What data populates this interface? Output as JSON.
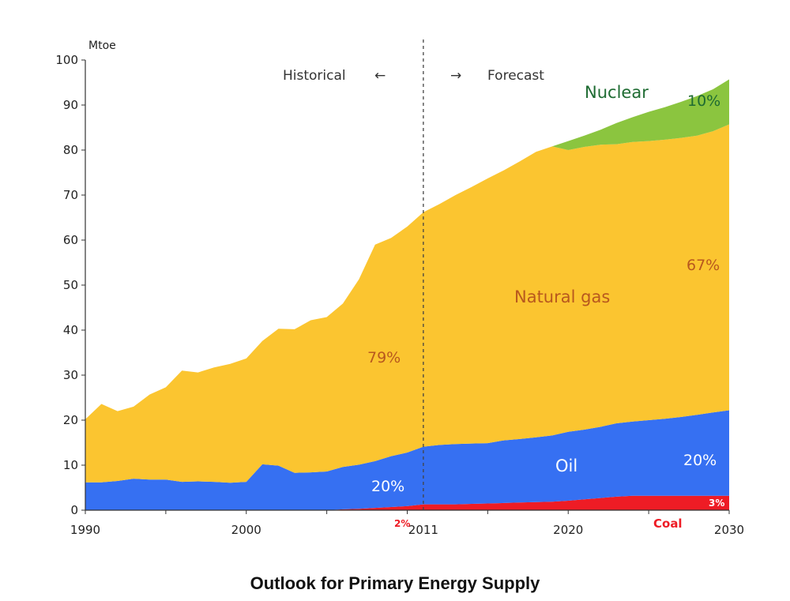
{
  "chart_data": {
    "type": "area",
    "stacked": true,
    "title": "Outlook for Primary Energy Supply",
    "ylabel": "Mtoe",
    "xlim": [
      1990,
      2030
    ],
    "ylim": [
      0,
      100
    ],
    "xticks": [
      "1990",
      "2000",
      "2011",
      "2020",
      "2030"
    ],
    "yticks": [
      0,
      10,
      20,
      30,
      40,
      50,
      60,
      70,
      80,
      90,
      100
    ],
    "x": [
      1990,
      1991,
      1992,
      1993,
      1994,
      1995,
      1996,
      1997,
      1998,
      1999,
      2000,
      2001,
      2002,
      2003,
      2004,
      2005,
      2006,
      2007,
      2008,
      2009,
      2010,
      2011,
      2012,
      2013,
      2014,
      2015,
      2016,
      2017,
      2018,
      2019,
      2020,
      2021,
      2022,
      2023,
      2024,
      2025,
      2026,
      2027,
      2028,
      2029,
      2030
    ],
    "series": [
      {
        "name": "Coal",
        "color": "#ee1c25",
        "values": [
          0,
          0,
          0,
          0,
          0,
          0,
          0,
          0,
          0,
          0,
          0,
          0,
          0,
          0,
          0,
          0,
          0.2,
          0.3,
          0.5,
          0.7,
          0.9,
          1.3,
          1.3,
          1.3,
          1.4,
          1.5,
          1.6,
          1.7,
          1.8,
          1.9,
          2.1,
          2.4,
          2.7,
          3.0,
          3.2,
          3.2,
          3.2,
          3.2,
          3.2,
          3.2,
          3.2
        ]
      },
      {
        "name": "Oil",
        "color": "#3670f2",
        "values": [
          6.2,
          6.2,
          6.5,
          7.0,
          6.8,
          6.8,
          6.3,
          6.4,
          6.3,
          6.1,
          6.3,
          10.2,
          9.9,
          8.3,
          8.4,
          8.6,
          9.4,
          9.8,
          10.4,
          11.3,
          11.9,
          12.8,
          13.2,
          13.4,
          13.4,
          13.4,
          13.9,
          14.1,
          14.4,
          14.7,
          15.3,
          15.5,
          15.8,
          16.3,
          16.5,
          16.8,
          17.1,
          17.5,
          18.0,
          18.5,
          19.0
        ]
      },
      {
        "name": "Natural gas",
        "color": "#fbc530",
        "values": [
          14.0,
          17.4,
          15.5,
          16.0,
          18.9,
          20.5,
          24.7,
          24.2,
          25.4,
          26.4,
          27.4,
          27.4,
          30.4,
          31.9,
          33.8,
          34.3,
          36.3,
          41.2,
          48.1,
          48.5,
          50.2,
          52.1,
          53.5,
          55.3,
          57.0,
          58.8,
          60.0,
          61.7,
          63.4,
          64.2,
          62.6,
          62.8,
          62.7,
          62.0,
          62.1,
          62.0,
          62.0,
          62.0,
          62.0,
          62.5,
          63.5
        ]
      },
      {
        "name": "Nuclear",
        "color": "#8bc53f",
        "values": [
          0,
          0,
          0,
          0,
          0,
          0,
          0,
          0,
          0,
          0,
          0,
          0,
          0,
          0,
          0,
          0,
          0,
          0,
          0,
          0,
          0,
          0,
          0,
          0,
          0,
          0,
          0,
          0,
          0,
          0,
          2.0,
          2.5,
          3.3,
          4.7,
          5.5,
          6.5,
          7.2,
          8.0,
          8.8,
          9.3,
          10.0
        ]
      }
    ],
    "divider_year": 2011,
    "annotations": {
      "historical": "Historical",
      "forecast": "Forecast",
      "nuclear_label": "Nuclear",
      "nuclear_pct": "10%",
      "gas_hist_pct": "79%",
      "gas_label": "Natural gas",
      "gas_fc_pct": "67%",
      "oil_hist_pct": "20%",
      "oil_label": "Oil",
      "oil_fc_pct": "20%",
      "coal_hist_pct": "2%",
      "coal_label": "Coal",
      "coal_fc_pct": "3%"
    }
  },
  "colors": {
    "nuclear_text": "#1e6b32",
    "gas_text": "#b8581e",
    "oil_text": "#ffffff",
    "coal_text": "#ee1c25"
  }
}
